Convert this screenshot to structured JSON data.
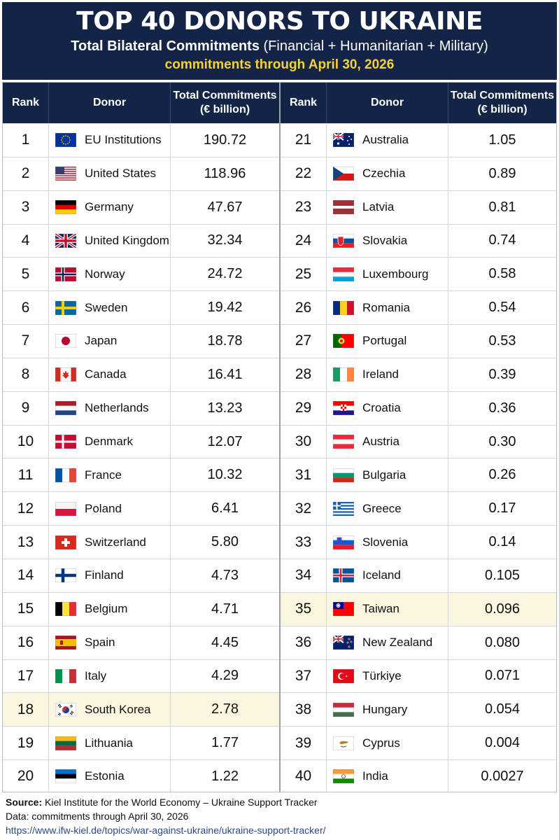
{
  "header": {
    "title": "TOP 40 DONORS TO UKRAINE",
    "subtitle_bold": "Total Bilateral Commitments",
    "subtitle_rest": " (Financial + Humanitarian + Military)",
    "date": "commitments through April 30, 2026"
  },
  "columns": {
    "rank": "Rank",
    "donor": "Donor",
    "total_line1": "Total Commitments",
    "total_line2": "(€ billion)"
  },
  "rows_left": [
    {
      "rank": "1",
      "donor": "EU Institutions",
      "value": "190.72",
      "flag": "eu-flag-icon"
    },
    {
      "rank": "2",
      "donor": "United States",
      "value": "118.96",
      "flag": "us-flag-icon"
    },
    {
      "rank": "3",
      "donor": "Germany",
      "value": "47.67",
      "flag": "germany-flag-icon"
    },
    {
      "rank": "4",
      "donor": "United Kingdom",
      "value": "32.34",
      "flag": "uk-flag-icon"
    },
    {
      "rank": "5",
      "donor": "Norway",
      "value": "24.72",
      "flag": "norway-flag-icon"
    },
    {
      "rank": "6",
      "donor": "Sweden",
      "value": "19.42",
      "flag": "sweden-flag-icon"
    },
    {
      "rank": "7",
      "donor": "Japan",
      "value": "18.78",
      "flag": "japan-flag-icon"
    },
    {
      "rank": "8",
      "donor": "Canada",
      "value": "16.41",
      "flag": "canada-flag-icon"
    },
    {
      "rank": "9",
      "donor": "Netherlands",
      "value": "13.23",
      "flag": "netherlands-flag-icon"
    },
    {
      "rank": "10",
      "donor": "Denmark",
      "value": "12.07",
      "flag": "denmark-flag-icon"
    },
    {
      "rank": "11",
      "donor": "France",
      "value": "10.32",
      "flag": "france-flag-icon"
    },
    {
      "rank": "12",
      "donor": "Poland",
      "value": "6.41",
      "flag": "poland-flag-icon"
    },
    {
      "rank": "13",
      "donor": "Switzerland",
      "value": "5.80",
      "flag": "switzerland-flag-icon"
    },
    {
      "rank": "14",
      "donor": "Finland",
      "value": "4.73",
      "flag": "finland-flag-icon"
    },
    {
      "rank": "15",
      "donor": "Belgium",
      "value": "4.71",
      "flag": "belgium-flag-icon"
    },
    {
      "rank": "16",
      "donor": "Spain",
      "value": "4.45",
      "flag": "spain-flag-icon"
    },
    {
      "rank": "17",
      "donor": "Italy",
      "value": "4.29",
      "flag": "italy-flag-icon"
    },
    {
      "rank": "18",
      "donor": "South Korea",
      "value": "2.78",
      "flag": "south-korea-flag-icon",
      "highlight": true
    },
    {
      "rank": "19",
      "donor": "Lithuania",
      "value": "1.77",
      "flag": "lithuania-flag-icon"
    },
    {
      "rank": "20",
      "donor": "Estonia",
      "value": "1.22",
      "flag": "estonia-flag-icon"
    }
  ],
  "rows_right": [
    {
      "rank": "21",
      "donor": "Australia",
      "value": "1.05",
      "flag": "australia-flag-icon"
    },
    {
      "rank": "22",
      "donor": "Czechia",
      "value": "0.89",
      "flag": "czechia-flag-icon"
    },
    {
      "rank": "23",
      "donor": "Latvia",
      "value": "0.81",
      "flag": "latvia-flag-icon"
    },
    {
      "rank": "24",
      "donor": "Slovakia",
      "value": "0.74",
      "flag": "slovakia-flag-icon"
    },
    {
      "rank": "25",
      "donor": "Luxembourg",
      "value": "0.58",
      "flag": "luxembourg-flag-icon"
    },
    {
      "rank": "26",
      "donor": "Romania",
      "value": "0.54",
      "flag": "romania-flag-icon"
    },
    {
      "rank": "27",
      "donor": "Portugal",
      "value": "0.53",
      "flag": "portugal-flag-icon"
    },
    {
      "rank": "28",
      "donor": "Ireland",
      "value": "0.39",
      "flag": "ireland-flag-icon"
    },
    {
      "rank": "29",
      "donor": "Croatia",
      "value": "0.36",
      "flag": "croatia-flag-icon"
    },
    {
      "rank": "30",
      "donor": "Austria",
      "value": "0.30",
      "flag": "austria-flag-icon"
    },
    {
      "rank": "31",
      "donor": "Bulgaria",
      "value": "0.26",
      "flag": "bulgaria-flag-icon"
    },
    {
      "rank": "32",
      "donor": "Greece",
      "value": "0.17",
      "flag": "greece-flag-icon"
    },
    {
      "rank": "33",
      "donor": "Slovenia",
      "value": "0.14",
      "flag": "slovenia-flag-icon"
    },
    {
      "rank": "34",
      "donor": "Iceland",
      "value": "0.105",
      "flag": "iceland-flag-icon"
    },
    {
      "rank": "35",
      "donor": "Taiwan",
      "value": "0.096",
      "flag": "taiwan-flag-icon",
      "highlight": true
    },
    {
      "rank": "36",
      "donor": "New Zealand",
      "value": "0.080",
      "flag": "new-zealand-flag-icon"
    },
    {
      "rank": "37",
      "donor": "Türkiye",
      "value": "0.071",
      "flag": "turkiye-flag-icon"
    },
    {
      "rank": "38",
      "donor": "Hungary",
      "value": "0.054",
      "flag": "hungary-flag-icon"
    },
    {
      "rank": "39",
      "donor": "Cyprus",
      "value": "0.004",
      "flag": "cyprus-flag-icon"
    },
    {
      "rank": "40",
      "donor": "India",
      "value": "0.0027",
      "flag": "india-flag-icon"
    }
  ],
  "footer": {
    "source_label": "Source:",
    "source_text": " Kiel Institute for the World Economy – Ukraine Support Tracker",
    "data_line": "Data: commitments through April 30, 2026",
    "url": "https://www.ifw-kiel.de/topics/war-against-ukraine/ukraine-support-tracker/"
  },
  "colors": {
    "header_bg": "#142446",
    "date_text": "#f3d23a",
    "highlight_row": "#fbf6df"
  }
}
